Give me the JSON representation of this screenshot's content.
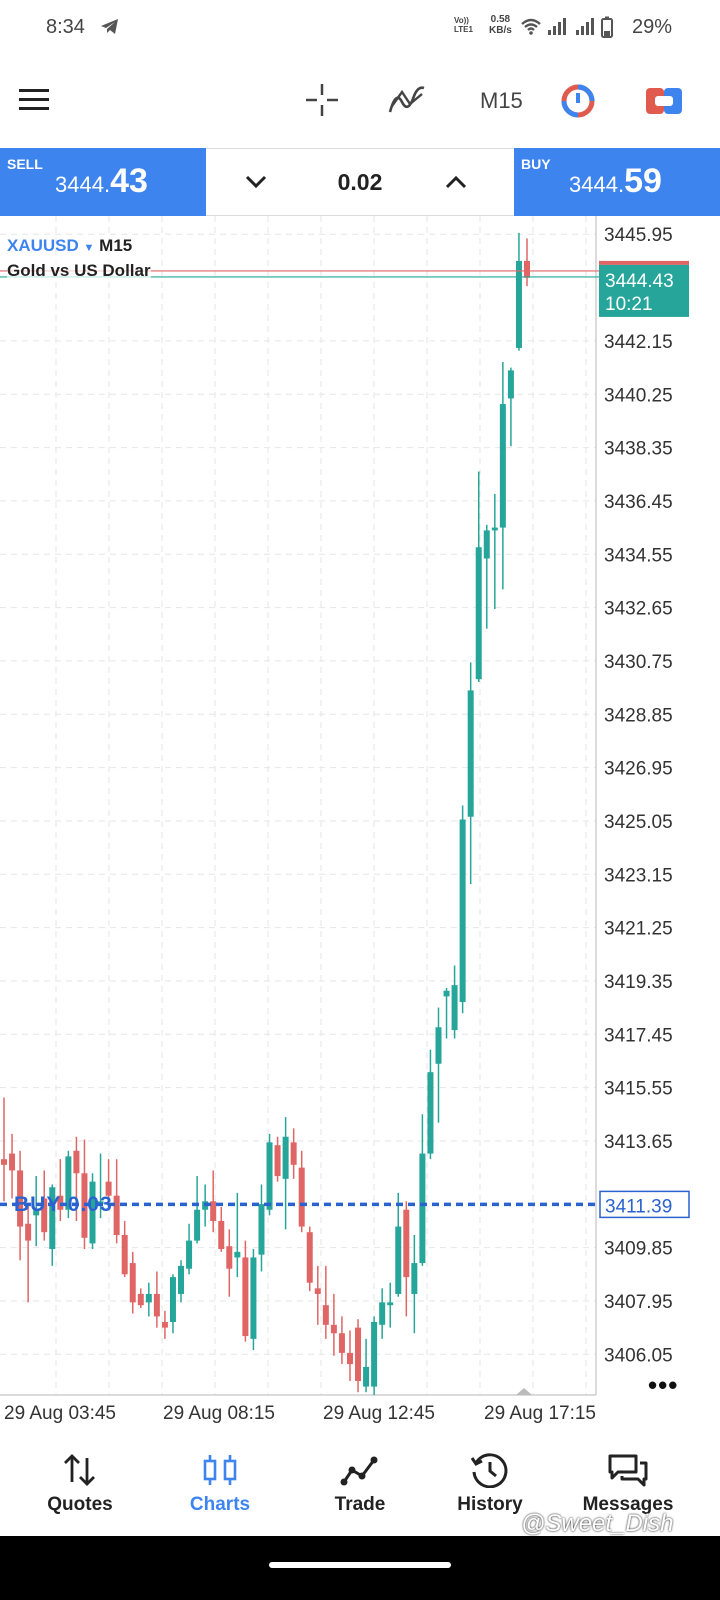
{
  "status_bar": {
    "time": "8:34",
    "volte": "Vo))",
    "lte": "LTE1",
    "speed_value": "0.58",
    "speed_unit": "KB/s",
    "battery": "29%"
  },
  "toolbar": {
    "timeframe": "M15",
    "icons": [
      "menu-icon",
      "crosshair-icon",
      "indicators-icon",
      "timeframe",
      "one-click-trading-icon",
      "trade-toggle-icon"
    ]
  },
  "trade_panel": {
    "sell_label": "SELL",
    "sell_price_small": "3444.",
    "sell_price_big": "43",
    "lot": "0.02",
    "buy_label": "BUY",
    "buy_price_small": "3444.",
    "buy_price_big": "59"
  },
  "chart_header": {
    "symbol": "XAUUSD",
    "timeframe": "M15",
    "description": "Gold vs US Dollar"
  },
  "order_line": {
    "label": "BUY 0.03",
    "price": "3411.39"
  },
  "colors": {
    "accent": "#3d84ef",
    "bull": "#26a69a",
    "bear": "#e06666",
    "order_line": "#2a62d0"
  },
  "chart_data": {
    "type": "candlestick",
    "ylim": [
      3404.6,
      3446.6
    ],
    "y_ticks": [
      "3445.95",
      "3442.15",
      "3440.25",
      "3438.35",
      "3436.45",
      "3434.55",
      "3432.65",
      "3430.75",
      "3428.85",
      "3426.95",
      "3425.05",
      "3423.15",
      "3421.25",
      "3419.35",
      "3417.45",
      "3415.55",
      "3413.65",
      "3409.85",
      "3407.95",
      "3406.05"
    ],
    "x_ticks": [
      "29 Aug 03:45",
      "29 Aug 08:15",
      "29 Aug 12:45",
      "29 Aug 17:15"
    ],
    "current_price": "3444.43",
    "current_timer": "10:21",
    "candles": [
      {
        "o": 3413.0,
        "h": 3415.2,
        "l": 3411.5,
        "c": 3412.8
      },
      {
        "o": 3413.2,
        "h": 3413.9,
        "l": 3411.6,
        "c": 3412.6
      },
      {
        "o": 3412.6,
        "h": 3413.3,
        "l": 3409.4,
        "c": 3410.6
      },
      {
        "o": 3410.7,
        "h": 3411.4,
        "l": 3407.9,
        "c": 3410.1
      },
      {
        "o": 3411.0,
        "h": 3412.4,
        "l": 3409.9,
        "c": 3411.2
      },
      {
        "o": 3411.6,
        "h": 3412.6,
        "l": 3410.1,
        "c": 3410.4
      },
      {
        "o": 3409.8,
        "h": 3412.1,
        "l": 3409.2,
        "c": 3412.0
      },
      {
        "o": 3411.7,
        "h": 3413.0,
        "l": 3410.8,
        "c": 3411.2
      },
      {
        "o": 3411.2,
        "h": 3413.3,
        "l": 3410.9,
        "c": 3413.1
      },
      {
        "o": 3413.3,
        "h": 3413.8,
        "l": 3410.8,
        "c": 3412.5
      },
      {
        "o": 3412.5,
        "h": 3413.7,
        "l": 3409.8,
        "c": 3410.2
      },
      {
        "o": 3410.0,
        "h": 3412.5,
        "l": 3409.8,
        "c": 3412.2
      },
      {
        "o": 3411.4,
        "h": 3413.2,
        "l": 3410.9,
        "c": 3411.5
      },
      {
        "o": 3412.2,
        "h": 3413.0,
        "l": 3411.3,
        "c": 3411.7
      },
      {
        "o": 3411.7,
        "h": 3413.0,
        "l": 3410.0,
        "c": 3410.3
      },
      {
        "o": 3410.3,
        "h": 3410.8,
        "l": 3408.8,
        "c": 3408.9
      },
      {
        "o": 3409.3,
        "h": 3409.7,
        "l": 3407.5,
        "c": 3407.9
      },
      {
        "o": 3408.2,
        "h": 3408.4,
        "l": 3407.7,
        "c": 3407.8
      },
      {
        "o": 3407.9,
        "h": 3408.6,
        "l": 3407.4,
        "c": 3408.2
      },
      {
        "o": 3408.2,
        "h": 3409.0,
        "l": 3407.0,
        "c": 3407.4
      },
      {
        "o": 3407.2,
        "h": 3407.6,
        "l": 3406.6,
        "c": 3407.0
      },
      {
        "o": 3407.2,
        "h": 3408.9,
        "l": 3406.8,
        "c": 3408.8
      },
      {
        "o": 3408.2,
        "h": 3409.4,
        "l": 3407.9,
        "c": 3409.2
      },
      {
        "o": 3409.1,
        "h": 3410.7,
        "l": 3408.9,
        "c": 3410.1
      },
      {
        "o": 3410.1,
        "h": 3412.4,
        "l": 3410.0,
        "c": 3411.2
      },
      {
        "o": 3411.2,
        "h": 3412.1,
        "l": 3410.6,
        "c": 3411.5
      },
      {
        "o": 3411.5,
        "h": 3412.6,
        "l": 3410.4,
        "c": 3410.8
      },
      {
        "o": 3410.8,
        "h": 3411.3,
        "l": 3409.7,
        "c": 3409.8
      },
      {
        "o": 3409.9,
        "h": 3410.5,
        "l": 3408.1,
        "c": 3409.1
      },
      {
        "o": 3409.5,
        "h": 3411.8,
        "l": 3408.8,
        "c": 3409.7
      },
      {
        "o": 3409.5,
        "h": 3410.1,
        "l": 3406.5,
        "c": 3406.7
      },
      {
        "o": 3406.6,
        "h": 3409.8,
        "l": 3406.2,
        "c": 3409.5
      },
      {
        "o": 3409.6,
        "h": 3412.1,
        "l": 3409.0,
        "c": 3411.4
      },
      {
        "o": 3411.2,
        "h": 3413.9,
        "l": 3411.0,
        "c": 3413.6
      },
      {
        "o": 3413.5,
        "h": 3413.8,
        "l": 3412.2,
        "c": 3412.4
      },
      {
        "o": 3412.3,
        "h": 3414.5,
        "l": 3410.5,
        "c": 3413.8
      },
      {
        "o": 3413.6,
        "h": 3414.1,
        "l": 3412.3,
        "c": 3412.8
      },
      {
        "o": 3412.7,
        "h": 3413.3,
        "l": 3410.4,
        "c": 3410.6
      },
      {
        "o": 3410.4,
        "h": 3410.6,
        "l": 3408.3,
        "c": 3408.6
      },
      {
        "o": 3408.4,
        "h": 3409.2,
        "l": 3407.1,
        "c": 3408.2
      },
      {
        "o": 3407.8,
        "h": 3409.2,
        "l": 3406.6,
        "c": 3407.1
      },
      {
        "o": 3407.1,
        "h": 3408.2,
        "l": 3406.0,
        "c": 3406.8
      },
      {
        "o": 3406.8,
        "h": 3407.4,
        "l": 3405.7,
        "c": 3406.1
      },
      {
        "o": 3406.1,
        "h": 3406.9,
        "l": 3405.1,
        "c": 3405.7
      },
      {
        "o": 3407.0,
        "h": 3407.3,
        "l": 3404.7,
        "c": 3405.1
      },
      {
        "o": 3404.9,
        "h": 3406.6,
        "l": 3404.7,
        "c": 3405.6
      },
      {
        "o": 3404.9,
        "h": 3407.4,
        "l": 3404.6,
        "c": 3407.2
      },
      {
        "o": 3407.1,
        "h": 3408.4,
        "l": 3406.6,
        "c": 3407.9
      },
      {
        "o": 3407.8,
        "h": 3408.6,
        "l": 3407.0,
        "c": 3407.9
      },
      {
        "o": 3408.2,
        "h": 3411.8,
        "l": 3408.1,
        "c": 3410.6
      },
      {
        "o": 3411.2,
        "h": 3411.5,
        "l": 3407.4,
        "c": 3408.8
      },
      {
        "o": 3408.2,
        "h": 3410.3,
        "l": 3406.8,
        "c": 3409.3
      },
      {
        "o": 3409.3,
        "h": 3414.6,
        "l": 3409.2,
        "c": 3413.2
      },
      {
        "o": 3413.2,
        "h": 3416.9,
        "l": 3413.0,
        "c": 3416.1
      },
      {
        "o": 3416.4,
        "h": 3418.4,
        "l": 3414.3,
        "c": 3417.7
      },
      {
        "o": 3418.8,
        "h": 3419.1,
        "l": 3417.3,
        "c": 3419.0
      },
      {
        "o": 3417.6,
        "h": 3419.9,
        "l": 3417.3,
        "c": 3419.2
      },
      {
        "o": 3418.6,
        "h": 3425.6,
        "l": 3418.2,
        "c": 3425.1
      },
      {
        "o": 3425.2,
        "h": 3430.7,
        "l": 3422.8,
        "c": 3429.7
      },
      {
        "o": 3430.1,
        "h": 3437.5,
        "l": 3430.0,
        "c": 3434.8
      },
      {
        "o": 3434.4,
        "h": 3435.6,
        "l": 3431.9,
        "c": 3435.4
      },
      {
        "o": 3435.4,
        "h": 3436.7,
        "l": 3432.6,
        "c": 3435.5
      },
      {
        "o": 3435.5,
        "h": 3441.4,
        "l": 3433.3,
        "c": 3439.9
      },
      {
        "o": 3440.1,
        "h": 3441.2,
        "l": 3438.4,
        "c": 3441.1
      },
      {
        "o": 3441.9,
        "h": 3446.0,
        "l": 3441.8,
        "c": 3445.0
      },
      {
        "o": 3445.0,
        "h": 3445.8,
        "l": 3444.1,
        "c": 3444.4
      }
    ]
  },
  "nav": [
    {
      "label": "Quotes"
    },
    {
      "label": "Charts"
    },
    {
      "label": "Trade"
    },
    {
      "label": "History"
    },
    {
      "label": "Messages"
    }
  ],
  "watermark": "@Sweet_Dish"
}
